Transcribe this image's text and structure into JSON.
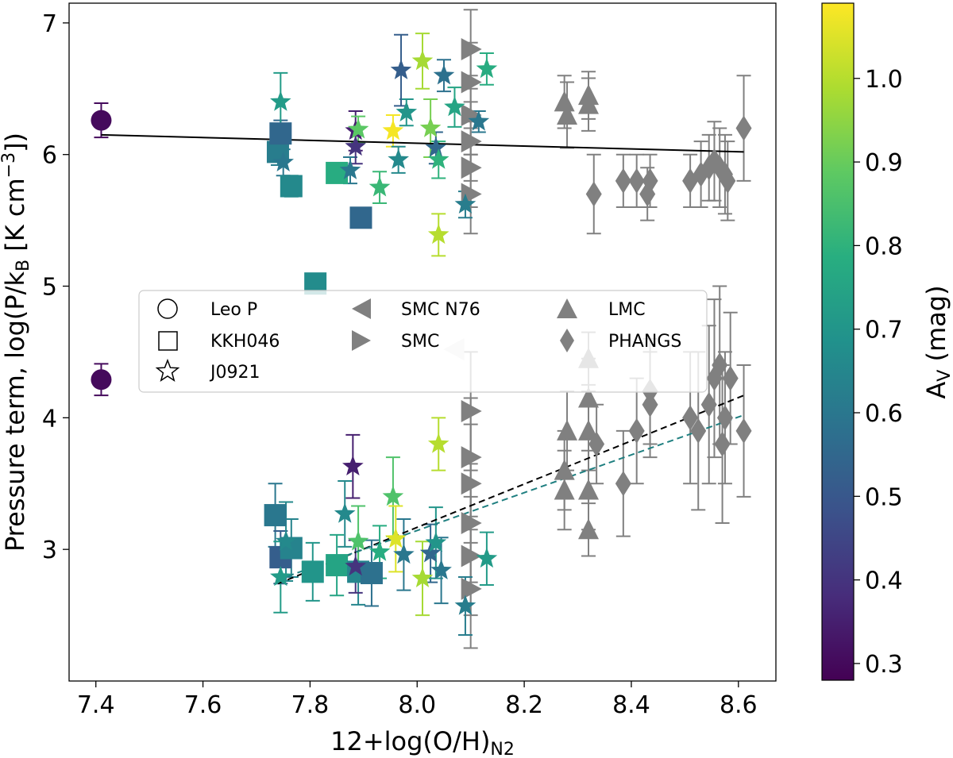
{
  "chart_data": {
    "type": "scatter",
    "xlabel": "12+log(O/H)",
    "xlabel_sub": "N2",
    "ylabel": "Pressure term, log(P/k",
    "ylabel_sub": "B",
    "ylabel_tail": " [K cm",
    "ylabel_sup": "−3",
    "ylabel_end": "])",
    "xlim": [
      7.35,
      8.67
    ],
    "ylim": [
      2.0,
      7.15
    ],
    "xticks": [
      7.4,
      7.6,
      7.8,
      8.0,
      8.2,
      8.4,
      8.6
    ],
    "xtick_labels": [
      "7.4",
      "7.6",
      "7.8",
      "8.0",
      "8.2",
      "8.4",
      "8.6"
    ],
    "yticks": [
      3,
      4,
      5,
      6,
      7
    ],
    "ytick_labels": [
      "3",
      "4",
      "5",
      "6",
      "7"
    ],
    "colorbar": {
      "label": "A",
      "label_sub": "V",
      "label_tail": " (mag)",
      "range": [
        0.28,
        1.09
      ],
      "ticks": [
        0.3,
        0.4,
        0.5,
        0.6,
        0.7,
        0.8,
        0.9,
        1.0
      ],
      "tick_labels": [
        "0.3",
        "0.4",
        "0.5",
        "0.6",
        "0.7",
        "0.8",
        "0.9",
        "1.0"
      ],
      "colormap": "viridis"
    },
    "legend": {
      "placement": "center-left",
      "entries": [
        {
          "label": "Leo P",
          "marker": "circle"
        },
        {
          "label": "KKH046",
          "marker": "square"
        },
        {
          "label": "J0921",
          "marker": "star"
        },
        {
          "label": "SMC N76",
          "marker": "triangle-left"
        },
        {
          "label": "SMC",
          "marker": "triangle-right"
        },
        {
          "label": "LMC",
          "marker": "triangle-up"
        },
        {
          "label": "PHANGS",
          "marker": "diamond"
        }
      ]
    },
    "fit_lines": [
      {
        "name": "upper-fit",
        "x": [
          7.41,
          8.61
        ],
        "y": [
          6.15,
          6.02
        ],
        "color": "#000000",
        "style": "solid"
      },
      {
        "name": "lower-fit-black",
        "x": [
          7.74,
          8.61
        ],
        "y": [
          2.74,
          4.17
        ],
        "color": "#000000",
        "style": "dashed"
      },
      {
        "name": "lower-fit-teal",
        "x": [
          7.74,
          8.61
        ],
        "y": [
          2.77,
          4.02
        ],
        "color": "#1f7f80",
        "style": "dashed"
      }
    ],
    "series": [
      {
        "name": "Leo P",
        "marker": "circle",
        "colored": true,
        "points": [
          {
            "x": 7.41,
            "y": 6.26,
            "err": 0.13,
            "av": 0.3
          },
          {
            "x": 7.41,
            "y": 4.29,
            "err": 0.12,
            "av": 0.3
          }
        ]
      },
      {
        "name": "KKH046",
        "marker": "square",
        "colored": true,
        "points": [
          {
            "x": 7.74,
            "y": 6.02,
            "err": 0.1,
            "av": 0.62
          },
          {
            "x": 7.745,
            "y": 6.16,
            "err": 0.1,
            "av": 0.55
          },
          {
            "x": 7.765,
            "y": 5.76,
            "err": 0.08,
            "av": 0.66
          },
          {
            "x": 7.85,
            "y": 5.86,
            "err": 0.05,
            "av": 0.78
          },
          {
            "x": 7.895,
            "y": 5.52,
            "err": 0.05,
            "av": 0.55
          },
          {
            "x": 7.81,
            "y": 5.02,
            "err": 0.05,
            "av": 0.67
          },
          {
            "x": 7.735,
            "y": 3.26,
            "err": 0.24,
            "av": 0.6
          },
          {
            "x": 7.745,
            "y": 2.94,
            "err": 0.2,
            "av": 0.52
          },
          {
            "x": 7.765,
            "y": 3.01,
            "err": 0.22,
            "av": 0.64
          },
          {
            "x": 7.805,
            "y": 2.83,
            "err": 0.22,
            "av": 0.7
          },
          {
            "x": 7.85,
            "y": 2.88,
            "err": 0.23,
            "av": 0.75
          },
          {
            "x": 7.89,
            "y": 2.83,
            "err": 0.25,
            "av": 0.65
          },
          {
            "x": 7.915,
            "y": 2.82,
            "err": 0.25,
            "av": 0.58
          }
        ]
      },
      {
        "name": "J0921",
        "marker": "star",
        "colored": true,
        "points": [
          {
            "x": 7.745,
            "y": 6.4,
            "err": 0.22,
            "av": 0.72
          },
          {
            "x": 7.75,
            "y": 5.94,
            "err": 0.1,
            "av": 0.6
          },
          {
            "x": 7.875,
            "y": 5.88,
            "err": 0.1,
            "av": 0.6
          },
          {
            "x": 7.885,
            "y": 6.06,
            "err": 0.13,
            "av": 0.4
          },
          {
            "x": 7.885,
            "y": 6.18,
            "err": 0.15,
            "av": 0.35
          },
          {
            "x": 7.89,
            "y": 6.19,
            "err": 0.1,
            "av": 0.88
          },
          {
            "x": 7.93,
            "y": 5.75,
            "err": 0.12,
            "av": 0.82
          },
          {
            "x": 7.955,
            "y": 6.18,
            "err": 0.12,
            "av": 1.08
          },
          {
            "x": 7.965,
            "y": 5.96,
            "err": 0.1,
            "av": 0.66
          },
          {
            "x": 7.98,
            "y": 6.32,
            "err": 0.1,
            "av": 0.7
          },
          {
            "x": 7.97,
            "y": 6.64,
            "err": 0.27,
            "av": 0.52
          },
          {
            "x": 8.01,
            "y": 6.71,
            "err": 0.21,
            "av": 0.98
          },
          {
            "x": 8.025,
            "y": 6.2,
            "err": 0.22,
            "av": 0.92
          },
          {
            "x": 8.035,
            "y": 6.05,
            "err": 0.12,
            "av": 0.55
          },
          {
            "x": 8.04,
            "y": 5.96,
            "err": 0.14,
            "av": 0.8
          },
          {
            "x": 8.04,
            "y": 5.39,
            "err": 0.16,
            "av": 1.0
          },
          {
            "x": 8.05,
            "y": 6.6,
            "err": 0.12,
            "av": 0.58
          },
          {
            "x": 8.07,
            "y": 6.36,
            "err": 0.15,
            "av": 0.75
          },
          {
            "x": 8.09,
            "y": 5.62,
            "err": 0.1,
            "av": 0.62
          },
          {
            "x": 8.115,
            "y": 6.25,
            "err": 0.08,
            "av": 0.6
          },
          {
            "x": 8.13,
            "y": 6.65,
            "err": 0.12,
            "av": 0.78
          },
          {
            "x": 7.745,
            "y": 2.79,
            "err": 0.27,
            "av": 0.72
          },
          {
            "x": 7.755,
            "y": 3.06,
            "err": 0.3,
            "av": 0.66
          },
          {
            "x": 7.865,
            "y": 3.27,
            "err": 0.25,
            "av": 0.66
          },
          {
            "x": 7.88,
            "y": 3.63,
            "err": 0.24,
            "av": 0.35
          },
          {
            "x": 7.885,
            "y": 2.87,
            "err": 0.2,
            "av": 0.4
          },
          {
            "x": 7.89,
            "y": 3.06,
            "err": 0.27,
            "av": 0.86
          },
          {
            "x": 7.93,
            "y": 2.98,
            "err": 0.2,
            "av": 0.78
          },
          {
            "x": 7.955,
            "y": 3.4,
            "err": 0.3,
            "av": 0.86
          },
          {
            "x": 7.96,
            "y": 3.08,
            "err": 0.25,
            "av": 1.05
          },
          {
            "x": 7.975,
            "y": 2.96,
            "err": 0.27,
            "av": 0.6
          },
          {
            "x": 8.01,
            "y": 2.78,
            "err": 0.28,
            "av": 0.98
          },
          {
            "x": 8.025,
            "y": 2.97,
            "err": 0.22,
            "av": 0.55
          },
          {
            "x": 8.035,
            "y": 3.05,
            "err": 0.27,
            "av": 0.7
          },
          {
            "x": 8.045,
            "y": 2.84,
            "err": 0.25,
            "av": 0.6
          },
          {
            "x": 8.04,
            "y": 3.8,
            "err": 0.2,
            "av": 1.0
          },
          {
            "x": 8.09,
            "y": 2.57,
            "err": 0.22,
            "av": 0.62
          },
          {
            "x": 8.13,
            "y": 2.93,
            "err": 0.2,
            "av": 0.72
          }
        ]
      },
      {
        "name": "SMC N76",
        "marker": "triangle-left",
        "colored": false,
        "points": [
          {
            "x": 8.07,
            "y": 4.52,
            "err": 0.0
          }
        ]
      },
      {
        "name": "SMC",
        "marker": "triangle-right",
        "colored": false,
        "points": [
          {
            "x": 8.1,
            "y": 6.8,
            "err": 0.3
          },
          {
            "x": 8.1,
            "y": 6.55,
            "err": 0.3
          },
          {
            "x": 8.1,
            "y": 6.3,
            "err": 0.3
          },
          {
            "x": 8.1,
            "y": 6.1,
            "err": 0.3
          },
          {
            "x": 8.1,
            "y": 5.9,
            "err": 0.3
          },
          {
            "x": 8.1,
            "y": 5.7,
            "err": 0.3
          },
          {
            "x": 8.1,
            "y": 4.05,
            "err": 0.45
          },
          {
            "x": 8.1,
            "y": 3.7,
            "err": 0.45
          },
          {
            "x": 8.1,
            "y": 3.5,
            "err": 0.45
          },
          {
            "x": 8.1,
            "y": 3.2,
            "err": 0.45
          },
          {
            "x": 8.1,
            "y": 2.95,
            "err": 0.45
          },
          {
            "x": 8.1,
            "y": 2.7,
            "err": 0.45
          }
        ]
      },
      {
        "name": "LMC",
        "marker": "triangle-up",
        "colored": false,
        "points": [
          {
            "x": 8.275,
            "y": 6.4,
            "err": 0.2
          },
          {
            "x": 8.28,
            "y": 6.3,
            "err": 0.25
          },
          {
            "x": 8.32,
            "y": 6.45,
            "err": 0.18
          },
          {
            "x": 8.32,
            "y": 6.38,
            "err": 0.2
          },
          {
            "x": 8.32,
            "y": 4.45,
            "err": 0.2
          },
          {
            "x": 8.28,
            "y": 3.9,
            "err": 0.3
          },
          {
            "x": 8.275,
            "y": 3.6,
            "err": 0.3
          },
          {
            "x": 8.275,
            "y": 3.45,
            "err": 0.3
          },
          {
            "x": 8.32,
            "y": 4.15,
            "err": 0.3
          },
          {
            "x": 8.32,
            "y": 3.9,
            "err": 0.3
          },
          {
            "x": 8.32,
            "y": 3.45,
            "err": 0.3
          },
          {
            "x": 8.32,
            "y": 3.15,
            "err": 0.2
          }
        ]
      },
      {
        "name": "PHANGS",
        "marker": "diamond",
        "colored": false,
        "points": [
          {
            "x": 8.33,
            "y": 5.7,
            "err": 0.3
          },
          {
            "x": 8.385,
            "y": 5.8,
            "err": 0.2
          },
          {
            "x": 8.41,
            "y": 5.8,
            "err": 0.2
          },
          {
            "x": 8.43,
            "y": 5.7,
            "err": 0.2
          },
          {
            "x": 8.435,
            "y": 5.8,
            "err": 0.2
          },
          {
            "x": 8.51,
            "y": 5.8,
            "err": 0.2
          },
          {
            "x": 8.53,
            "y": 5.85,
            "err": 0.25
          },
          {
            "x": 8.545,
            "y": 5.9,
            "err": 0.25
          },
          {
            "x": 8.555,
            "y": 5.95,
            "err": 0.3
          },
          {
            "x": 8.565,
            "y": 5.9,
            "err": 0.3
          },
          {
            "x": 8.575,
            "y": 5.85,
            "err": 0.3
          },
          {
            "x": 8.58,
            "y": 5.8,
            "err": 0.3
          },
          {
            "x": 8.61,
            "y": 6.2,
            "err": 0.4
          },
          {
            "x": 8.335,
            "y": 3.8,
            "err": 0.3
          },
          {
            "x": 8.385,
            "y": 3.5,
            "err": 0.4
          },
          {
            "x": 8.41,
            "y": 3.9,
            "err": 0.4
          },
          {
            "x": 8.435,
            "y": 4.2,
            "err": 0.4
          },
          {
            "x": 8.435,
            "y": 4.1,
            "err": 0.4
          },
          {
            "x": 8.51,
            "y": 4.0,
            "err": 0.5
          },
          {
            "x": 8.525,
            "y": 3.9,
            "err": 0.6
          },
          {
            "x": 8.545,
            "y": 4.1,
            "err": 0.6
          },
          {
            "x": 8.555,
            "y": 4.3,
            "err": 0.6
          },
          {
            "x": 8.565,
            "y": 4.4,
            "err": 0.6
          },
          {
            "x": 8.57,
            "y": 3.8,
            "err": 0.6
          },
          {
            "x": 8.575,
            "y": 4.0,
            "err": 0.5
          },
          {
            "x": 8.585,
            "y": 4.3,
            "err": 0.5
          },
          {
            "x": 8.61,
            "y": 3.9,
            "err": 0.5
          }
        ]
      }
    ]
  }
}
